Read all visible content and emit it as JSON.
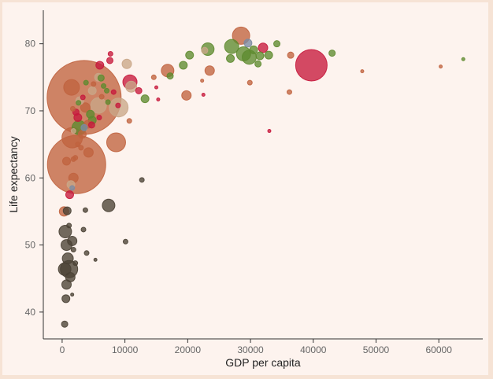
{
  "chart_data": {
    "type": "scatter",
    "title": "",
    "xlabel": "GDP per capita",
    "ylabel": "Life expectancy",
    "xlim": [
      -3000,
      67000
    ],
    "ylim": [
      36,
      85
    ],
    "xticks": [
      0,
      10000,
      20000,
      30000,
      40000,
      50000,
      60000
    ],
    "yticks": [
      40,
      50,
      60,
      70,
      80
    ],
    "grid": false,
    "legend": "none",
    "colors": {
      "Africa": "#4a4135",
      "Americas": "#c6183c",
      "Asia": "#c0633f",
      "Europe": "#5e8a2f",
      "Oceania": "#7b8ba3",
      "Other": "#c9a688"
    },
    "bubble_scale": "radius proportional to sqrt(population)",
    "points": [
      {
        "x": 3500,
        "y": 72.0,
        "r": 47,
        "c": "Asia"
      },
      {
        "x": 2300,
        "y": 62.0,
        "r": 37,
        "c": "Asia"
      },
      {
        "x": 39700,
        "y": 76.8,
        "r": 20,
        "c": "Americas"
      },
      {
        "x": 1600,
        "y": 66.0,
        "r": 13,
        "c": "Asia"
      },
      {
        "x": 8600,
        "y": 65.3,
        "r": 12,
        "c": "Asia"
      },
      {
        "x": 28500,
        "y": 81.2,
        "r": 11,
        "c": "Asia"
      },
      {
        "x": 9000,
        "y": 70.5,
        "r": 12,
        "c": "Other"
      },
      {
        "x": 5800,
        "y": 70.8,
        "r": 10,
        "c": "Other"
      },
      {
        "x": 10800,
        "y": 74.3,
        "r": 9,
        "c": "Americas"
      },
      {
        "x": 1500,
        "y": 73.5,
        "r": 10,
        "c": "Asia"
      },
      {
        "x": 1100,
        "y": 46.4,
        "r": 11,
        "c": "Africa"
      },
      {
        "x": 400,
        "y": 46.4,
        "r": 8,
        "c": "Africa"
      },
      {
        "x": 500,
        "y": 52.0,
        "r": 8,
        "c": "Africa"
      },
      {
        "x": 700,
        "y": 50.0,
        "r": 7,
        "c": "Africa"
      },
      {
        "x": 7400,
        "y": 55.9,
        "r": 8,
        "c": "Africa"
      },
      {
        "x": 27000,
        "y": 79.6,
        "r": 9,
        "c": "Europe"
      },
      {
        "x": 29800,
        "y": 78.0,
        "r": 9,
        "c": "Europe"
      },
      {
        "x": 28900,
        "y": 78.5,
        "r": 9,
        "c": "Europe"
      },
      {
        "x": 23200,
        "y": 79.2,
        "r": 8,
        "c": "Europe"
      },
      {
        "x": 2700,
        "y": 67.5,
        "r": 9,
        "c": "Europe"
      },
      {
        "x": 16800,
        "y": 76.0,
        "r": 8,
        "c": "Asia"
      },
      {
        "x": 23500,
        "y": 76.0,
        "r": 6,
        "c": "Asia"
      },
      {
        "x": 19800,
        "y": 72.3,
        "r": 6,
        "c": "Asia"
      },
      {
        "x": 32000,
        "y": 79.4,
        "r": 6,
        "c": "Americas"
      },
      {
        "x": 29600,
        "y": 80.1,
        "r": 5,
        "c": "Oceania"
      },
      {
        "x": 11000,
        "y": 73.6,
        "r": 7,
        "c": "Other"
      },
      {
        "x": 10300,
        "y": 77.0,
        "r": 6,
        "c": "Other"
      },
      {
        "x": 4200,
        "y": 63.8,
        "r": 6,
        "c": "Asia"
      },
      {
        "x": 1800,
        "y": 60.0,
        "r": 6,
        "c": "Asia"
      },
      {
        "x": 3700,
        "y": 70.5,
        "r": 6,
        "c": "Asia"
      },
      {
        "x": 2800,
        "y": 71.5,
        "r": 5,
        "c": "Other"
      },
      {
        "x": 4800,
        "y": 73.0,
        "r": 5,
        "c": "Other"
      },
      {
        "x": 5800,
        "y": 75.0,
        "r": 5,
        "c": "Other"
      },
      {
        "x": 900,
        "y": 48.0,
        "r": 7,
        "c": "Africa"
      },
      {
        "x": 1300,
        "y": 45.2,
        "r": 6,
        "c": "Africa"
      },
      {
        "x": 600,
        "y": 42.0,
        "r": 5,
        "c": "Africa"
      },
      {
        "x": 700,
        "y": 44.1,
        "r": 6,
        "c": "Africa"
      },
      {
        "x": 1600,
        "y": 50.6,
        "r": 6,
        "c": "Africa"
      },
      {
        "x": 800,
        "y": 55.1,
        "r": 5,
        "c": "Africa"
      },
      {
        "x": 400,
        "y": 38.2,
        "r": 4,
        "c": "Africa"
      },
      {
        "x": 300,
        "y": 55.0,
        "r": 6,
        "c": "Asia"
      },
      {
        "x": 1200,
        "y": 57.5,
        "r": 5,
        "c": "Americas"
      },
      {
        "x": 1400,
        "y": 59.0,
        "r": 5,
        "c": "Other"
      },
      {
        "x": 700,
        "y": 62.5,
        "r": 5,
        "c": "Asia"
      },
      {
        "x": 4500,
        "y": 69.5,
        "r": 5,
        "c": "Europe"
      },
      {
        "x": 2500,
        "y": 69.0,
        "r": 5,
        "c": "Americas"
      },
      {
        "x": 4800,
        "y": 68.6,
        "r": 5,
        "c": "Europe"
      },
      {
        "x": 3500,
        "y": 67.5,
        "r": 4,
        "c": "Oceania"
      },
      {
        "x": 6000,
        "y": 76.8,
        "r": 5,
        "c": "Americas"
      },
      {
        "x": 7600,
        "y": 77.5,
        "r": 4,
        "c": "Americas"
      },
      {
        "x": 4100,
        "y": 68.0,
        "r": 5,
        "c": "Asia"
      },
      {
        "x": 3200,
        "y": 66.5,
        "r": 5,
        "c": "Asia"
      },
      {
        "x": 13200,
        "y": 71.8,
        "r": 5,
        "c": "Europe"
      },
      {
        "x": 12200,
        "y": 73.0,
        "r": 4,
        "c": "Americas"
      },
      {
        "x": 17200,
        "y": 75.2,
        "r": 4,
        "c": "Europe"
      },
      {
        "x": 19300,
        "y": 76.8,
        "r": 5,
        "c": "Europe"
      },
      {
        "x": 20300,
        "y": 78.3,
        "r": 5,
        "c": "Europe"
      },
      {
        "x": 22700,
        "y": 79.0,
        "r": 4,
        "c": "Other"
      },
      {
        "x": 26800,
        "y": 77.8,
        "r": 5,
        "c": "Europe"
      },
      {
        "x": 30500,
        "y": 79.1,
        "r": 5,
        "c": "Europe"
      },
      {
        "x": 31500,
        "y": 78.2,
        "r": 5,
        "c": "Europe"
      },
      {
        "x": 32900,
        "y": 78.3,
        "r": 5,
        "c": "Europe"
      },
      {
        "x": 34200,
        "y": 80.0,
        "r": 4,
        "c": "Europe"
      },
      {
        "x": 31200,
        "y": 77.0,
        "r": 4,
        "c": "Europe"
      },
      {
        "x": 36400,
        "y": 78.3,
        "r": 4,
        "c": "Asia"
      },
      {
        "x": 43000,
        "y": 78.6,
        "r": 4,
        "c": "Europe"
      },
      {
        "x": 36200,
        "y": 72.8,
        "r": 3,
        "c": "Asia"
      },
      {
        "x": 47800,
        "y": 75.9,
        "r": 2,
        "c": "Asia"
      },
      {
        "x": 60300,
        "y": 76.6,
        "r": 2,
        "c": "Asia"
      },
      {
        "x": 63900,
        "y": 77.7,
        "r": 2,
        "c": "Europe"
      },
      {
        "x": 33000,
        "y": 67.0,
        "r": 2,
        "c": "Americas"
      },
      {
        "x": 29900,
        "y": 74.2,
        "r": 3,
        "c": "Asia"
      },
      {
        "x": 22300,
        "y": 74.5,
        "r": 2,
        "c": "Asia"
      },
      {
        "x": 22500,
        "y": 72.4,
        "r": 2,
        "c": "Americas"
      },
      {
        "x": 12700,
        "y": 59.7,
        "r": 3,
        "c": "Africa"
      },
      {
        "x": 10100,
        "y": 50.5,
        "r": 3,
        "c": "Africa"
      },
      {
        "x": 5300,
        "y": 47.8,
        "r": 2,
        "c": "Africa"
      },
      {
        "x": 3700,
        "y": 55.2,
        "r": 3,
        "c": "Africa"
      },
      {
        "x": 3400,
        "y": 52.3,
        "r": 3,
        "c": "Africa"
      },
      {
        "x": 3900,
        "y": 48.8,
        "r": 3,
        "c": "Africa"
      },
      {
        "x": 1600,
        "y": 42.6,
        "r": 2,
        "c": "Africa"
      },
      {
        "x": 1800,
        "y": 49.3,
        "r": 3,
        "c": "Africa"
      },
      {
        "x": 2100,
        "y": 47.3,
        "r": 3,
        "c": "Africa"
      },
      {
        "x": 1100,
        "y": 52.9,
        "r": 3,
        "c": "Africa"
      },
      {
        "x": 6200,
        "y": 74.9,
        "r": 4,
        "c": "Europe"
      },
      {
        "x": 7100,
        "y": 73.0,
        "r": 3,
        "c": "Europe"
      },
      {
        "x": 8200,
        "y": 72.8,
        "r": 3,
        "c": "Americas"
      },
      {
        "x": 7700,
        "y": 78.5,
        "r": 3,
        "c": "Americas"
      },
      {
        "x": 3300,
        "y": 72.0,
        "r": 3,
        "c": "Americas"
      },
      {
        "x": 2200,
        "y": 69.8,
        "r": 4,
        "c": "Americas"
      },
      {
        "x": 4700,
        "y": 67.9,
        "r": 4,
        "c": "Americas"
      },
      {
        "x": 5000,
        "y": 74.0,
        "r": 3,
        "c": "Asia"
      },
      {
        "x": 6300,
        "y": 72.1,
        "r": 3,
        "c": "Asia"
      },
      {
        "x": 8900,
        "y": 70.8,
        "r": 3,
        "c": "Americas"
      },
      {
        "x": 10700,
        "y": 68.5,
        "r": 3,
        "c": "Asia"
      },
      {
        "x": 15000,
        "y": 73.5,
        "r": 2,
        "c": "Americas"
      },
      {
        "x": 15300,
        "y": 71.7,
        "r": 2,
        "c": "Americas"
      },
      {
        "x": 14600,
        "y": 75.0,
        "r": 3,
        "c": "Asia"
      },
      {
        "x": 5900,
        "y": 69.0,
        "r": 3,
        "c": "Americas"
      },
      {
        "x": 2500,
        "y": 65.0,
        "r": 3,
        "c": "Asia"
      },
      {
        "x": 2100,
        "y": 63.0,
        "r": 3,
        "c": "Asia"
      },
      {
        "x": 3000,
        "y": 64.5,
        "r": 3,
        "c": "Asia"
      },
      {
        "x": 1700,
        "y": 70.3,
        "r": 3,
        "c": "Asia"
      },
      {
        "x": 2600,
        "y": 71.2,
        "r": 3,
        "c": "Europe"
      },
      {
        "x": 3800,
        "y": 74.2,
        "r": 3,
        "c": "Europe"
      },
      {
        "x": 1800,
        "y": 67.0,
        "r": 3,
        "c": "Other"
      },
      {
        "x": 1600,
        "y": 58.5,
        "r": 3,
        "c": "Oceania"
      },
      {
        "x": 1800,
        "y": 62.8,
        "r": 3,
        "c": "Asia"
      },
      {
        "x": 7300,
        "y": 71.3,
        "r": 3,
        "c": "Europe"
      },
      {
        "x": 6600,
        "y": 73.7,
        "r": 3,
        "c": "Europe"
      }
    ]
  }
}
